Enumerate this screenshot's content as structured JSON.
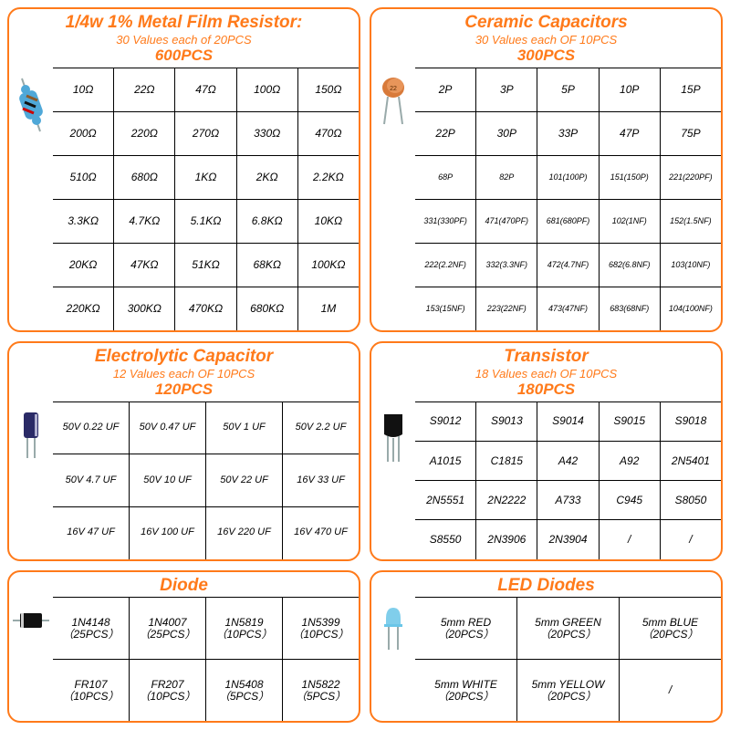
{
  "accent_color": "#ff7a1a",
  "resistor": {
    "title": "1/4w 1% Metal Film Resistor:",
    "subtitle": "30 Values each of 20PCS",
    "total": "600PCS",
    "cols": 5,
    "rows": [
      [
        "10Ω",
        "22Ω",
        "47Ω",
        "100Ω",
        "150Ω"
      ],
      [
        "200Ω",
        "220Ω",
        "270Ω",
        "330Ω",
        "470Ω"
      ],
      [
        "510Ω",
        "680Ω",
        "1KΩ",
        "2KΩ",
        "2.2KΩ"
      ],
      [
        "3.3KΩ",
        "4.7KΩ",
        "5.1KΩ",
        "6.8KΩ",
        "10KΩ"
      ],
      [
        "20KΩ",
        "47KΩ",
        "51KΩ",
        "68KΩ",
        "100KΩ"
      ],
      [
        "220KΩ",
        "300KΩ",
        "470KΩ",
        "680KΩ",
        "1M"
      ]
    ]
  },
  "ceramic": {
    "title": "Ceramic Capacitors",
    "subtitle": "30 Values each OF 10PCS",
    "total": "300PCS",
    "cols": 5,
    "rows": [
      [
        "2P",
        "3P",
        "5P",
        "10P",
        "15P"
      ],
      [
        "22P",
        "30P",
        "33P",
        "47P",
        "75P"
      ],
      [
        "68P",
        "82P",
        "101(100P)",
        "151(150P)",
        "221(220PF)"
      ],
      [
        "331(330PF)",
        "471(470PF)",
        "681(680PF)",
        "102(1NF)",
        "152(1.5NF)"
      ],
      [
        "222(2.2NF)",
        "332(3.3NF)",
        "472(4.7NF)",
        "682(6.8NF)",
        "103(10NF)"
      ],
      [
        "153(15NF)",
        "223(22NF)",
        "473(47NF)",
        "683(68NF)",
        "104(100NF)"
      ]
    ]
  },
  "electrolytic": {
    "title": "Electrolytic Capacitor",
    "subtitle": "12 Values each OF 10PCS",
    "total": "120PCS",
    "cols": 4,
    "rows": [
      [
        "50V  0.22 UF",
        "50V  0.47 UF",
        "50V  1 UF",
        "50V  2.2 UF"
      ],
      [
        "50V  4.7 UF",
        "50V  10 UF",
        "50V  22 UF",
        "16V  33 UF"
      ],
      [
        "16V  47 UF",
        "16V  100 UF",
        "16V  220 UF",
        "16V  470 UF"
      ]
    ]
  },
  "transistor": {
    "title": "Transistor",
    "subtitle": "18 Values each OF 10PCS",
    "total": "180PCS",
    "cols": 5,
    "rows": [
      [
        "S9012",
        "S9013",
        "S9014",
        "S9015",
        "S9018"
      ],
      [
        "A1015",
        "C1815",
        "A42",
        "A92",
        "2N5401"
      ],
      [
        "2N5551",
        "2N2222",
        "A733",
        "C945",
        "S8050"
      ],
      [
        "S8550",
        "2N3906",
        "2N3904",
        "/",
        "/"
      ]
    ]
  },
  "diode": {
    "title": "Diode",
    "cols": 4,
    "rows": [
      [
        [
          "1N4148",
          "（25PCS）"
        ],
        [
          "1N4007",
          "（25PCS）"
        ],
        [
          "1N5819",
          "（10PCS）"
        ],
        [
          "1N5399",
          "（10PCS）"
        ]
      ],
      [
        [
          "FR107",
          "（10PCS）"
        ],
        [
          "FR207",
          "（10PCS）"
        ],
        [
          "1N5408",
          "（5PCS）"
        ],
        [
          "1N5822",
          "（5PCS）"
        ]
      ]
    ]
  },
  "led": {
    "title": "LED Diodes",
    "cols": 3,
    "rows": [
      [
        [
          "5mm RED",
          "（20PCS）"
        ],
        [
          "5mm GREEN",
          "（20PCS）"
        ],
        [
          "5mm BLUE",
          "（20PCS）"
        ]
      ],
      [
        [
          "5mm WHITE",
          "（20PCS）"
        ],
        [
          "5mm YELLOW",
          "（20PCS）"
        ],
        [
          "/",
          ""
        ]
      ]
    ]
  }
}
